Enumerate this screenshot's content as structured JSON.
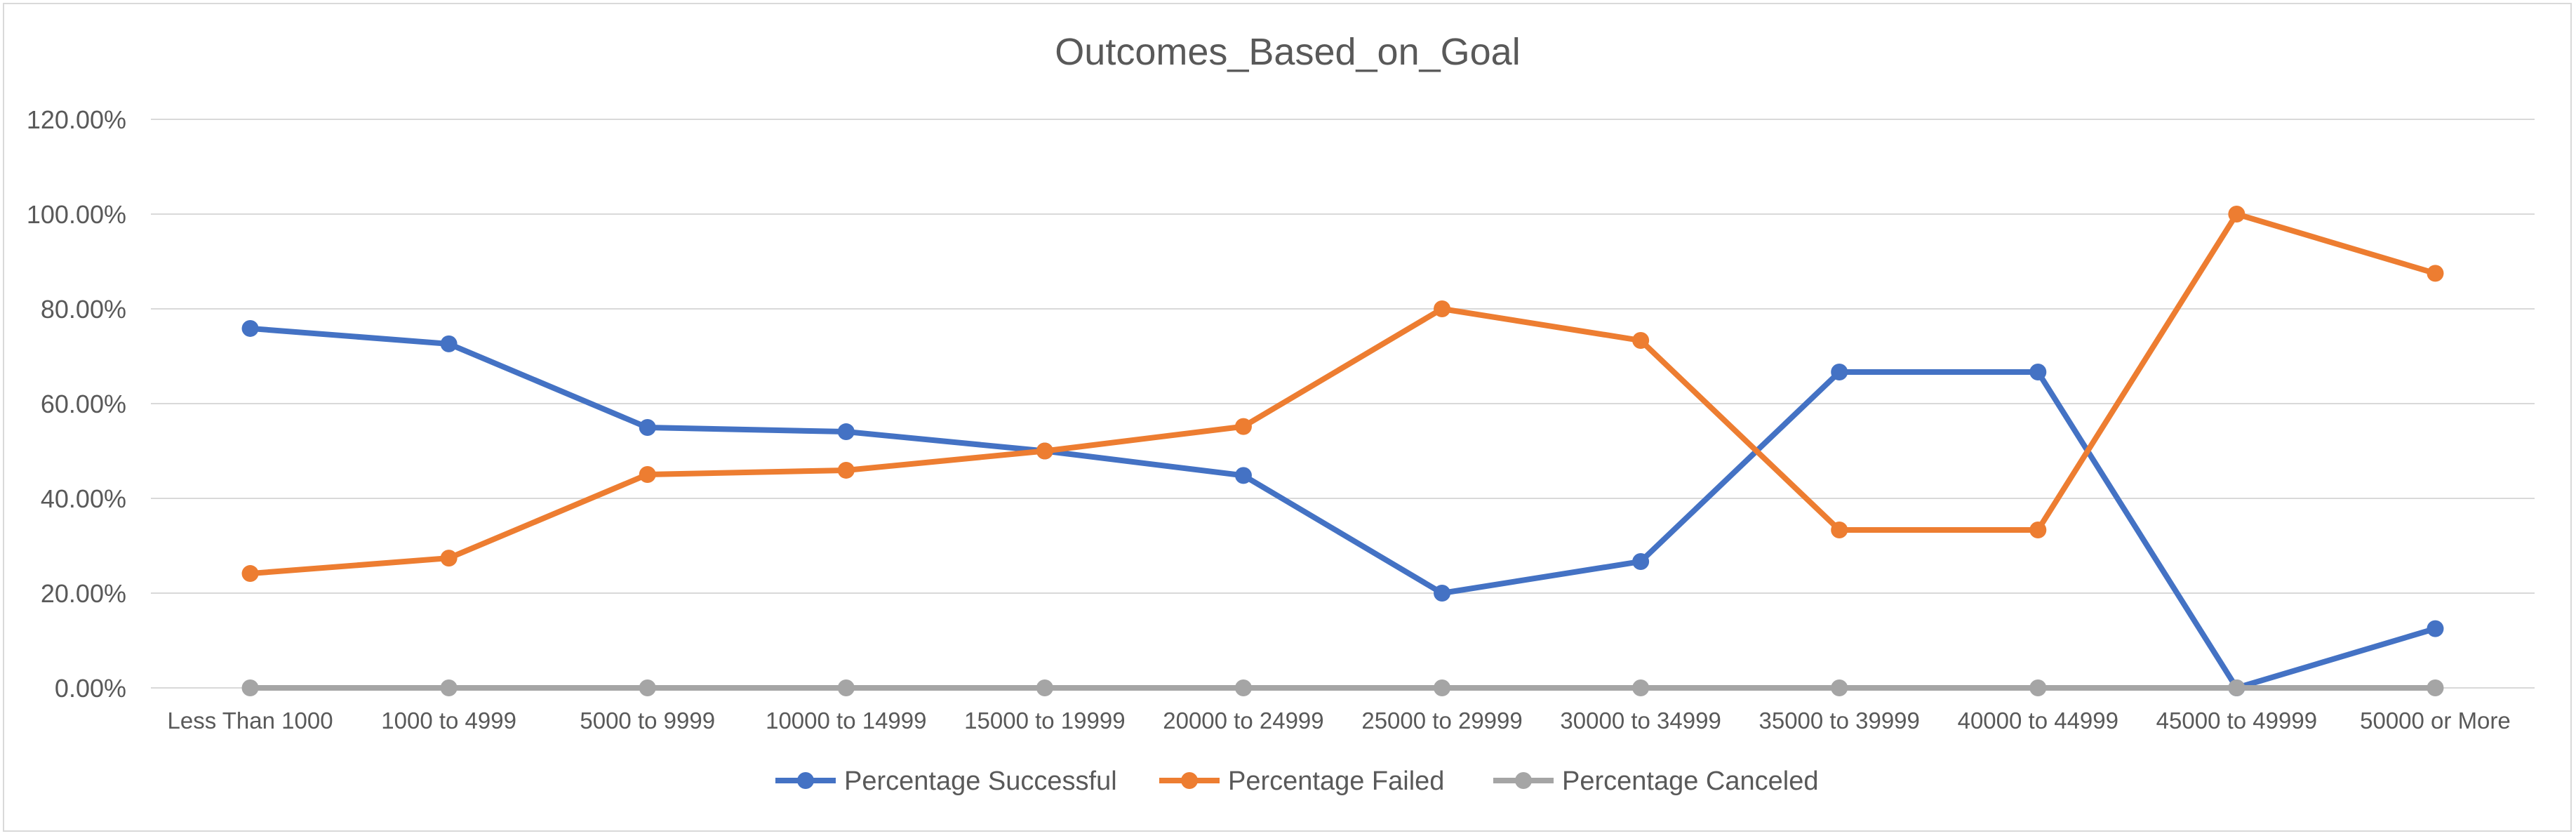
{
  "chart_data": {
    "type": "line",
    "title": "Outcomes_Based_on_Goal",
    "xlabel": "",
    "ylabel": "",
    "categories": [
      "Less Than 1000",
      "1000 to 4999",
      "5000 to 9999",
      "10000 to 14999",
      "15000 to 19999",
      "20000 to 24999",
      "25000 to 29999",
      "30000 to 34999",
      "35000 to 39999",
      "40000 to 44999",
      "45000 to 49999",
      "50000 or More"
    ],
    "ylim": [
      0,
      120
    ],
    "yticks": [
      0,
      20,
      40,
      60,
      80,
      100,
      120
    ],
    "ytick_labels": [
      "0.00%",
      "20.00%",
      "40.00%",
      "60.00%",
      "80.00%",
      "100.00%",
      "120.00%"
    ],
    "grid": true,
    "legend_position": "bottom",
    "series": [
      {
        "name": "Percentage Successful",
        "color": "#4472C4",
        "values": [
          75.86,
          72.61,
          54.96,
          54.07,
          50.0,
          44.83,
          20.0,
          26.67,
          66.67,
          66.67,
          0.0,
          12.5
        ]
      },
      {
        "name": "Percentage Failed",
        "color": "#ED7D31",
        "values": [
          24.14,
          27.39,
          45.04,
          45.93,
          50.0,
          55.17,
          80.0,
          73.33,
          33.33,
          33.33,
          100.0,
          87.5
        ]
      },
      {
        "name": "Percentage Canceled",
        "color": "#A5A5A5",
        "values": [
          0,
          0,
          0,
          0,
          0,
          0,
          0,
          0,
          0,
          0,
          0,
          0
        ]
      }
    ]
  }
}
